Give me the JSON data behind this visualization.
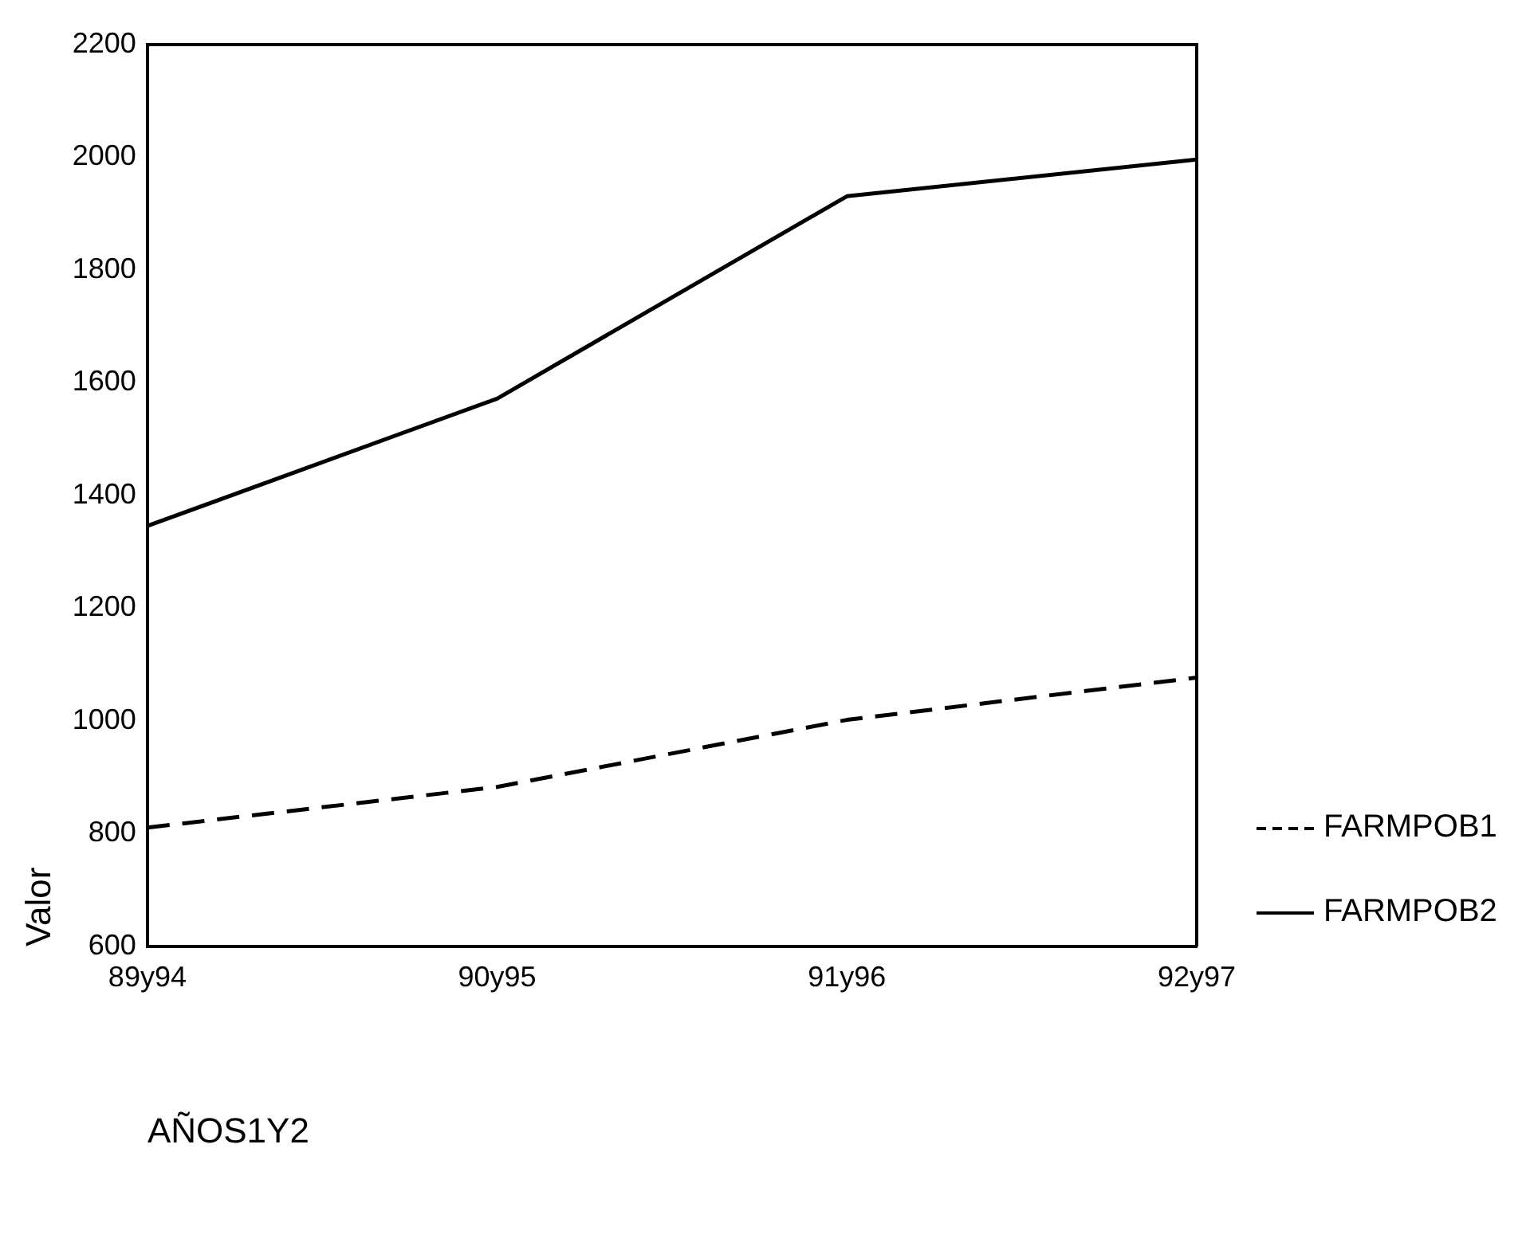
{
  "chart_data": {
    "type": "line",
    "xlabel": "AÑOS1Y2",
    "ylabel": "Valor",
    "categories": [
      "89y94",
      "90y95",
      "91y96",
      "92y97"
    ],
    "series": [
      {
        "name": "FARMPOB1",
        "color": "#000000",
        "line_style": "dashed",
        "values": [
          811,
          883,
          1002,
          1077
        ]
      },
      {
        "name": "FARMPOB2",
        "color": "#000000",
        "line_style": "solid",
        "values": [
          1346,
          1572,
          1931,
          1996
        ]
      }
    ],
    "ylim": [
      600,
      2200
    ],
    "yticks": [
      600,
      800,
      1000,
      1200,
      1400,
      1600,
      1800,
      2000,
      2200
    ],
    "grid": false,
    "legend": "right",
    "marker": "none"
  }
}
